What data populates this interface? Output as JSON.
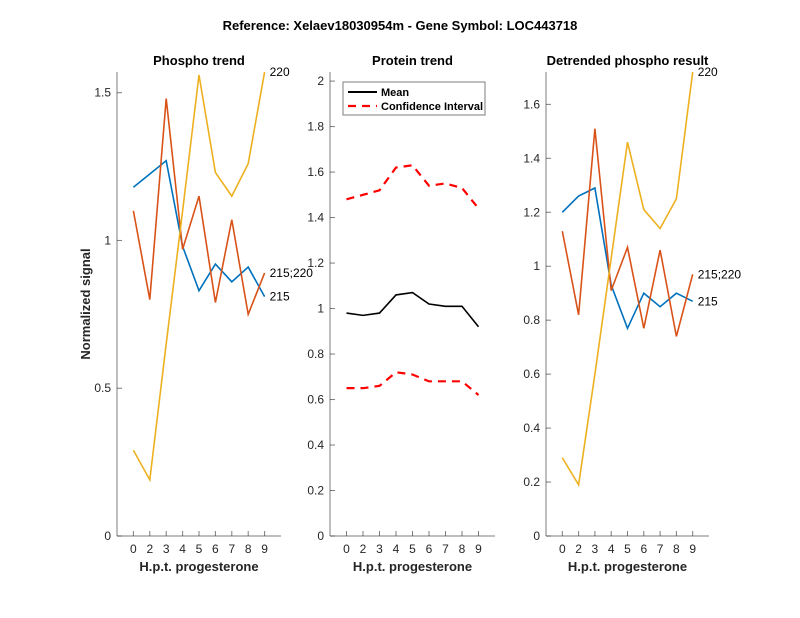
{
  "chart_data": {
    "title": "Reference:  Xelaev18030954m - Gene Symbol:  LOC443718",
    "type": "line",
    "panels": [
      {
        "id": "phospho",
        "title": "Phospho trend",
        "xlabel": "H.p.t. progesterone",
        "ylabel": "Normalized signal",
        "categories": [
          "0",
          "2",
          "3",
          "4",
          "5",
          "6",
          "7",
          "8",
          "9"
        ],
        "xlim": [
          0,
          10
        ],
        "ylim": [
          0,
          1.57
        ],
        "yticks": [
          0,
          0.5,
          1,
          1.5
        ],
        "ytick_labels": [
          "0",
          "0.5",
          "1",
          "1.5"
        ],
        "series": [
          {
            "name": "215",
            "color": "#0072BD",
            "dash": false,
            "label": "215",
            "values": [
              1.18,
              1.225,
              1.27,
              0.98,
              0.83,
              0.92,
              0.86,
              0.91,
              0.81
            ]
          },
          {
            "name": "215;220",
            "color": "#D95319",
            "dash": false,
            "label": "215;220",
            "values": [
              1.1,
              0.8,
              1.48,
              0.97,
              1.15,
              0.79,
              1.07,
              0.75,
              0.89
            ]
          },
          {
            "name": "220",
            "color": "#EDB120",
            "dash": false,
            "label": "220",
            "values": [
              0.29,
              0.19,
              0.65,
              1.1,
              1.56,
              1.23,
              1.15,
              1.26,
              1.57
            ]
          }
        ]
      },
      {
        "id": "protein",
        "title": "Protein trend",
        "xlabel": "H.p.t. progesterone",
        "ylabel": "",
        "categories": [
          "0",
          "2",
          "3",
          "4",
          "5",
          "6",
          "7",
          "8",
          "9"
        ],
        "xlim": [
          0,
          10
        ],
        "ylim": [
          0,
          2.04
        ],
        "yticks": [
          0,
          0.2,
          0.4,
          0.6,
          0.8,
          1,
          1.2,
          1.4,
          1.6,
          1.8,
          2
        ],
        "ytick_labels": [
          "0",
          "0.2",
          "0.4",
          "0.6",
          "0.8",
          "1",
          "1.2",
          "1.4",
          "1.6",
          "1.8",
          "2"
        ],
        "legend": {
          "position": "top-left",
          "entries": [
            {
              "label": "Mean",
              "color": "#000000",
              "dash": false
            },
            {
              "label": "Confidence Interval",
              "color": "#FF0000",
              "dash": true
            }
          ]
        },
        "series": [
          {
            "name": "Mean",
            "color": "#000000",
            "dash": false,
            "values": [
              0.98,
              0.97,
              0.98,
              1.06,
              1.07,
              1.02,
              1.01,
              1.01,
              0.92
            ]
          },
          {
            "name": "Confidence Interval upper",
            "color": "#FF0000",
            "dash": true,
            "values": [
              1.48,
              1.5,
              1.52,
              1.62,
              1.63,
              1.54,
              1.55,
              1.53,
              1.44
            ]
          },
          {
            "name": "Confidence Interval lower",
            "color": "#FF0000",
            "dash": true,
            "values": [
              0.65,
              0.65,
              0.66,
              0.72,
              0.71,
              0.68,
              0.68,
              0.68,
              0.62
            ]
          }
        ]
      },
      {
        "id": "detrended",
        "title": "Detrended phospho result",
        "xlabel": "H.p.t. progesterone",
        "ylabel": "",
        "categories": [
          "0",
          "2",
          "3",
          "4",
          "5",
          "6",
          "7",
          "8",
          "9"
        ],
        "xlim": [
          0,
          10
        ],
        "ylim": [
          0,
          1.72
        ],
        "yticks": [
          0,
          0.2,
          0.4,
          0.6,
          0.8,
          1,
          1.2,
          1.4,
          1.6
        ],
        "ytick_labels": [
          "0",
          "0.2",
          "0.4",
          "0.6",
          "0.8",
          "1",
          "1.2",
          "1.4",
          "1.6"
        ],
        "series": [
          {
            "name": "215",
            "color": "#0072BD",
            "dash": false,
            "label": "215",
            "values": [
              1.2,
              1.26,
              1.29,
              0.93,
              0.77,
              0.9,
              0.85,
              0.9,
              0.87
            ]
          },
          {
            "name": "215;220",
            "color": "#D95319",
            "dash": false,
            "label": "215;220",
            "values": [
              1.13,
              0.82,
              1.51,
              0.91,
              1.07,
              0.77,
              1.06,
              0.74,
              0.97
            ]
          },
          {
            "name": "220",
            "color": "#EDB120",
            "dash": false,
            "label": "220",
            "values": [
              0.29,
              0.19,
              0.6,
              1.03,
              1.46,
              1.21,
              1.14,
              1.25,
              1.72
            ]
          }
        ]
      }
    ]
  }
}
